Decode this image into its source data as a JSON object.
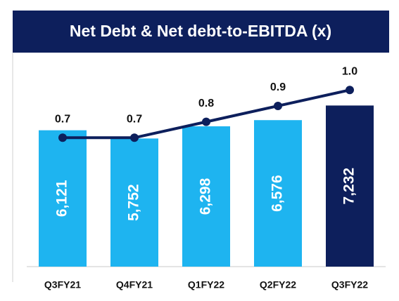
{
  "chart_data": {
    "type": "combo",
    "title": "Net Debt & Net debt-to-EBITDA (x)",
    "categories": [
      "Q3FY21",
      "Q4FY21",
      "Q1FY22",
      "Q2FY22",
      "Q3FY22"
    ],
    "ylim": [
      0,
      8000
    ],
    "y2lim": [
      -0.11,
      1.01
    ],
    "series": [
      {
        "type": "bar",
        "colors": [
          "#1eb4f0",
          "#1eb4f0",
          "#1eb4f0",
          "#1eb4f0",
          "#0d1f5c"
        ],
        "values": [
          6121,
          5752,
          6298,
          6576,
          7232
        ],
        "value_labels": [
          "6,121",
          "5,752",
          "6,298",
          "6,576",
          "7,232"
        ]
      },
      {
        "type": "line",
        "axis": "y2",
        "color": "#0d1f5c",
        "values": [
          0.7,
          0.7,
          0.8,
          0.9,
          1.0
        ],
        "value_labels": [
          "0.7",
          "0.7",
          "0.8",
          "0.9",
          "1.0"
        ]
      }
    ]
  }
}
